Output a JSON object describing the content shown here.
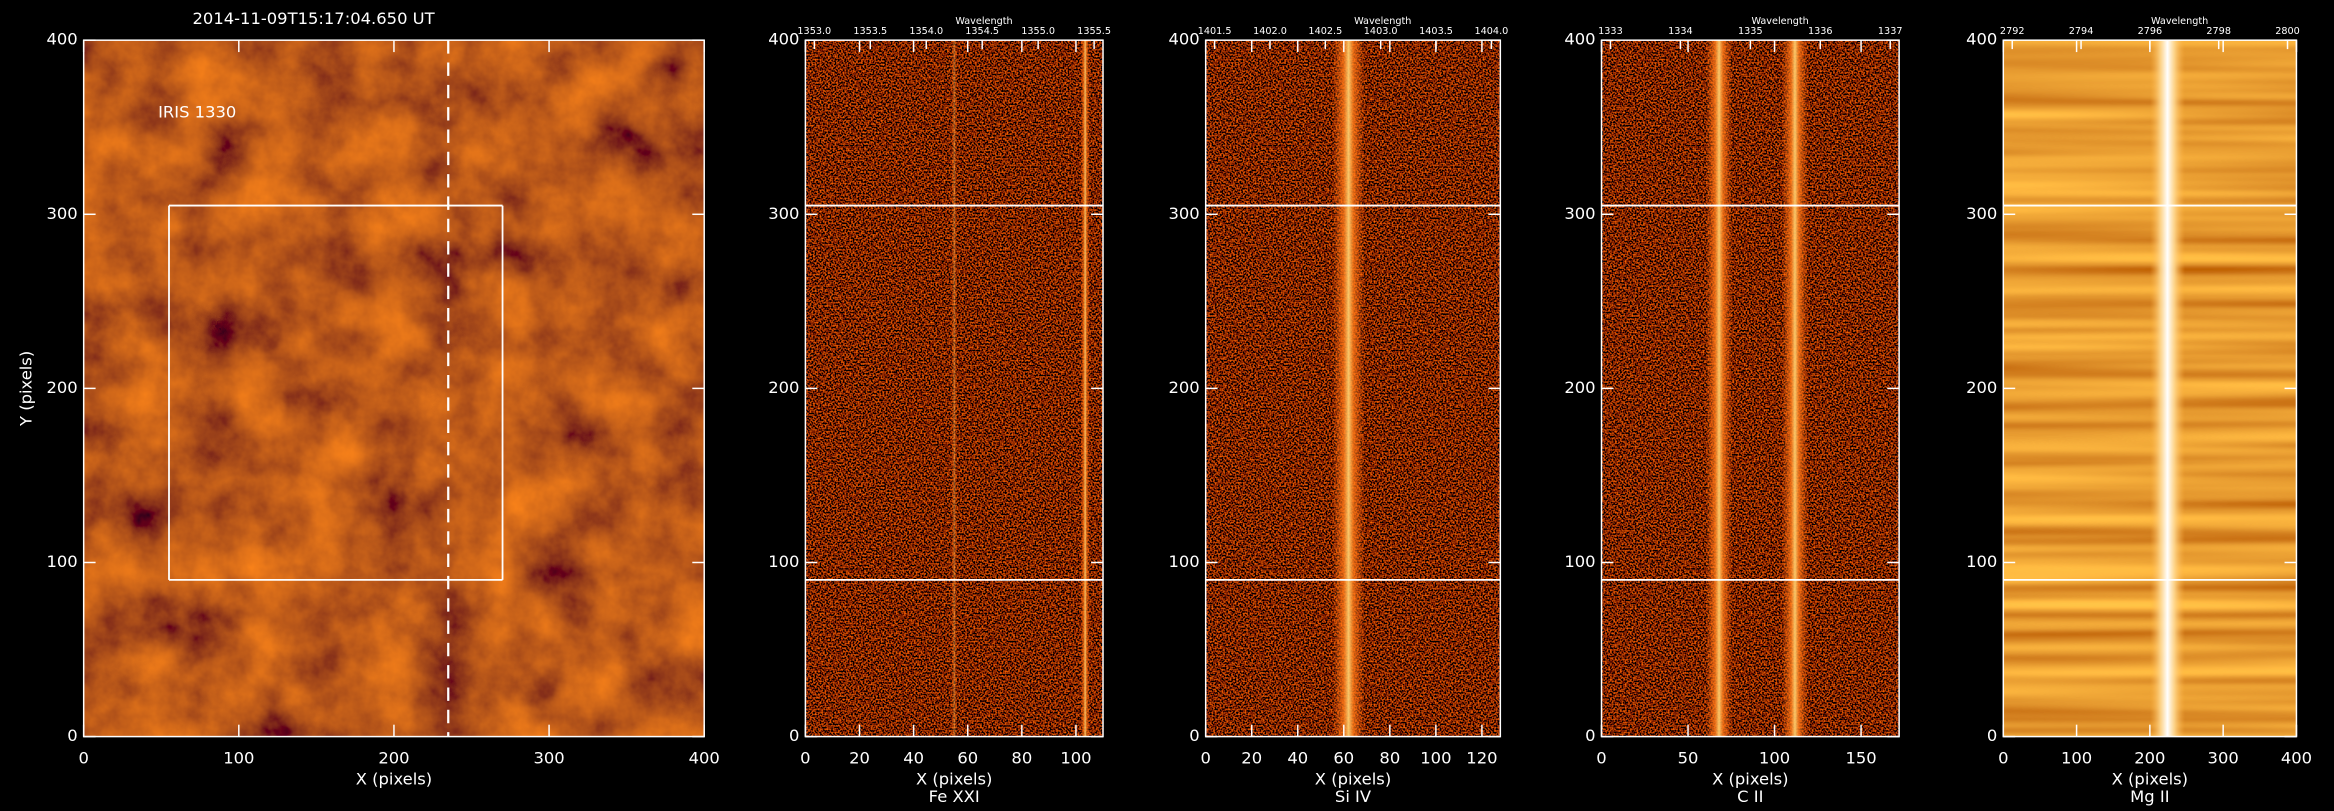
{
  "chart_data": [
    {
      "type": "image",
      "title": "2014-11-09T15:17:04.650 UT",
      "annotation": "IRIS 1330",
      "xlabel": "X (pixels)",
      "ylabel": "Y (pixels)",
      "xlim": [
        0,
        400
      ],
      "ylim": [
        0,
        400
      ],
      "xticks": [
        0,
        100,
        200,
        300,
        400
      ],
      "yticks": [
        0,
        100,
        200,
        300,
        400
      ],
      "region": {
        "x": [
          55,
          270
        ],
        "y": [
          90,
          305
        ]
      },
      "slit_x": 235
    },
    {
      "type": "spectrum",
      "xlabel": "X (pixels)",
      "subtitle": "Fe XXI",
      "top_label": "Wavelength",
      "top_ticks": [
        "1353.0",
        "1353.5",
        "1354.0",
        "1354.5",
        "1355.0",
        "1355.5"
      ],
      "xlim": [
        0,
        110
      ],
      "ylim": [
        0,
        400
      ],
      "xticks": [
        0,
        20,
        40,
        60,
        80,
        100
      ],
      "yticks": [
        0,
        100,
        200,
        300,
        400
      ],
      "hlines": [
        90,
        305
      ]
    },
    {
      "type": "spectrum",
      "xlabel": "X (pixels)",
      "subtitle": "Si IV",
      "top_label": "Wavelength",
      "top_ticks": [
        "1401.5",
        "1402.0",
        "1402.5",
        "1403.0",
        "1403.5",
        "1404.0"
      ],
      "xlim": [
        0,
        128
      ],
      "ylim": [
        0,
        400
      ],
      "xticks": [
        0,
        20,
        40,
        60,
        80,
        100,
        120
      ],
      "yticks": [
        0,
        100,
        200,
        300,
        400
      ],
      "hlines": [
        90,
        305
      ]
    },
    {
      "type": "spectrum",
      "xlabel": "X (pixels)",
      "subtitle": "C II",
      "top_label": "Wavelength",
      "top_ticks": [
        "1333",
        "1334",
        "1335",
        "1336",
        "1337"
      ],
      "xlim": [
        0,
        172
      ],
      "ylim": [
        0,
        400
      ],
      "xticks": [
        0,
        50,
        100,
        150
      ],
      "yticks": [
        0,
        100,
        200,
        300,
        400
      ],
      "hlines": [
        90,
        305
      ]
    },
    {
      "type": "spectrum",
      "xlabel": "X (pixels)",
      "subtitle": "Mg II",
      "top_label": "Wavelength",
      "top_ticks": [
        "2792",
        "2794",
        "2796",
        "2798",
        "2800"
      ],
      "xlim": [
        0,
        400
      ],
      "ylim": [
        0,
        400
      ],
      "xticks": [
        0,
        100,
        200,
        300,
        400
      ],
      "yticks": [
        0,
        100,
        200,
        300,
        400
      ],
      "hlines": [
        90,
        305
      ]
    }
  ]
}
